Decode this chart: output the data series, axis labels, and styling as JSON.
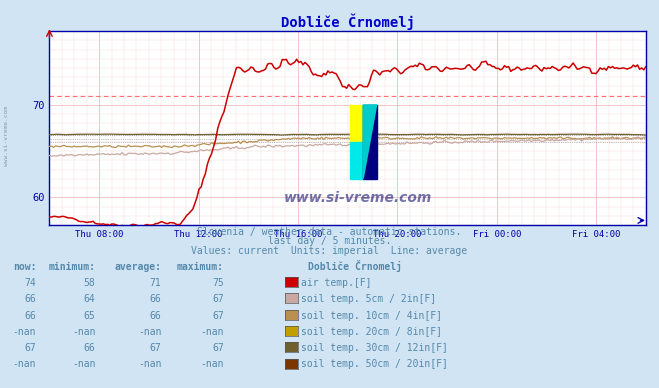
{
  "title": "Dobliče Črnomelj",
  "background_color": "#d0e4f4",
  "plot_bg_color": "#ffffff",
  "title_color": "#0000cc",
  "text_color": "#5588aa",
  "axis_color": "#0000aa",
  "xlabel_labels": [
    "Thu 08:00",
    "Thu 12:00",
    "Thu 16:00",
    "Thu 20:00",
    "Fri 00:00",
    "Fri 04:00"
  ],
  "tick_positions": [
    24,
    72,
    120,
    168,
    216,
    264
  ],
  "xlim": [
    0,
    288
  ],
  "ylim": [
    57,
    78
  ],
  "yticks": [
    60,
    70
  ],
  "subtitle1": "Slovenia / weather data - automatic stations.",
  "subtitle2": "last day / 5 minutes.",
  "subtitle3": "Values: current  Units: imperial  Line: average",
  "table_headers": [
    "now:",
    "minimum:",
    "average:",
    "maximum:",
    "Dobliče Črnomelj"
  ],
  "table_rows": [
    {
      "now": "74",
      "min": "58",
      "avg": "71",
      "max": "75",
      "color": "#cc0000",
      "label": "air temp.[F]"
    },
    {
      "now": "66",
      "min": "64",
      "avg": "66",
      "max": "67",
      "color": "#c8a8a0",
      "label": "soil temp. 5cm / 2in[F]"
    },
    {
      "now": "66",
      "min": "65",
      "avg": "66",
      "max": "67",
      "color": "#b89050",
      "label": "soil temp. 10cm / 4in[F]"
    },
    {
      "now": "-nan",
      "min": "-nan",
      "avg": "-nan",
      "max": "-nan",
      "color": "#c0a000",
      "label": "soil temp. 20cm / 8in[F]"
    },
    {
      "now": "67",
      "min": "66",
      "avg": "67",
      "max": "67",
      "color": "#706030",
      "label": "soil temp. 30cm / 12in[F]"
    },
    {
      "now": "-nan",
      "min": "-nan",
      "avg": "-nan",
      "max": "-nan",
      "color": "#7a3800",
      "label": "soil temp. 50cm / 20in[F]"
    }
  ],
  "air_temp_color": "#cc0000",
  "soil5_color": "#c8a8a0",
  "soil10_color": "#b89050",
  "soil20_color": "#c0a000",
  "soil30_color": "#706030",
  "soil50_color": "#7a3800",
  "air_avg": 71.0,
  "soil5_avg": 66.0,
  "soil10_avg": 66.3,
  "soil30_avg": 66.8,
  "n_points": 288
}
